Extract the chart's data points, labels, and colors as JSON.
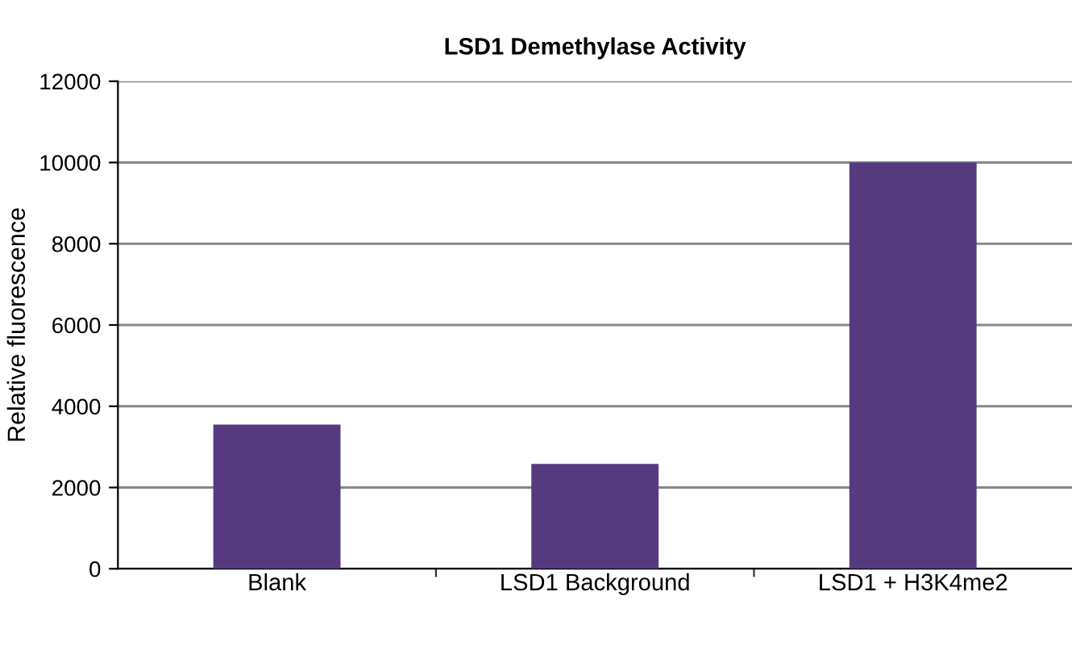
{
  "chart_data": {
    "type": "bar",
    "title": "LSD1 Demethylase Activity",
    "ylabel": "Relative fluorescence",
    "categories": [
      "Blank",
      "LSD1 Background",
      "LSD1 + H3K4me2"
    ],
    "values": [
      3550,
      2580,
      10000
    ],
    "color": "#553a80",
    "ylim": [
      0,
      12000
    ],
    "yticks": [
      0,
      2000,
      4000,
      6000,
      8000,
      10000,
      12000
    ],
    "grid": "y"
  }
}
